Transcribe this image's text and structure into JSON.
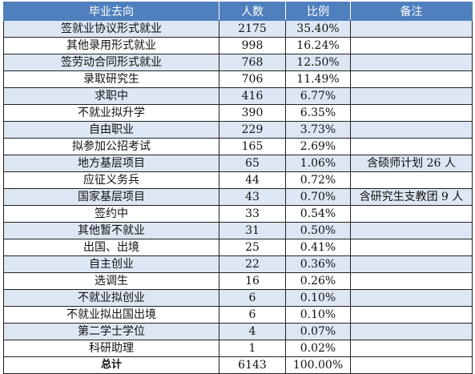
{
  "table": {
    "headers": [
      "毕业去向",
      "人数",
      "比例",
      "备注"
    ],
    "rows": [
      {
        "dest": "签就业协议形式就业",
        "count": "2175",
        "ratio": "35.40%",
        "note": ""
      },
      {
        "dest": "其他录用形式就业",
        "count": "998",
        "ratio": "16.24%",
        "note": ""
      },
      {
        "dest": "签劳动合同形式就业",
        "count": "768",
        "ratio": "12.50%",
        "note": ""
      },
      {
        "dest": "录取研究生",
        "count": "706",
        "ratio": "11.49%",
        "note": ""
      },
      {
        "dest": "求职中",
        "count": "416",
        "ratio": "6.77%",
        "note": ""
      },
      {
        "dest": "不就业拟升学",
        "count": "390",
        "ratio": "6.35%",
        "note": ""
      },
      {
        "dest": "自由职业",
        "count": "229",
        "ratio": "3.73%",
        "note": ""
      },
      {
        "dest": "拟参加公招考试",
        "count": "165",
        "ratio": "2.69%",
        "note": ""
      },
      {
        "dest": "地方基层项目",
        "count": "65",
        "ratio": "1.06%",
        "note": "含硕师计划 26 人"
      },
      {
        "dest": "应征义务兵",
        "count": "44",
        "ratio": "0.72%",
        "note": ""
      },
      {
        "dest": "国家基层项目",
        "count": "43",
        "ratio": "0.70%",
        "note": "含研究生支教团 9 人"
      },
      {
        "dest": "签约中",
        "count": "33",
        "ratio": "0.54%",
        "note": ""
      },
      {
        "dest": "其他暂不就业",
        "count": "31",
        "ratio": "0.50%",
        "note": ""
      },
      {
        "dest": "出国、出境",
        "count": "25",
        "ratio": "0.41%",
        "note": ""
      },
      {
        "dest": "自主创业",
        "count": "22",
        "ratio": "0.36%",
        "note": ""
      },
      {
        "dest": "选调生",
        "count": "16",
        "ratio": "0.26%",
        "note": ""
      },
      {
        "dest": "不就业拟创业",
        "count": "6",
        "ratio": "0.10%",
        "note": ""
      },
      {
        "dest": "不就业拟出国出境",
        "count": "6",
        "ratio": "0.10%",
        "note": ""
      },
      {
        "dest": "第二学士学位",
        "count": "4",
        "ratio": "0.07%",
        "note": ""
      },
      {
        "dest": "科研助理",
        "count": "1",
        "ratio": "0.02%",
        "note": ""
      }
    ],
    "total": {
      "label": "总计",
      "count": "6143",
      "ratio": "100.00%",
      "note": ""
    }
  },
  "colors": {
    "header_bg": "#4f7fbd",
    "stripe_bg": "#dde7f4",
    "border": "#222222"
  }
}
